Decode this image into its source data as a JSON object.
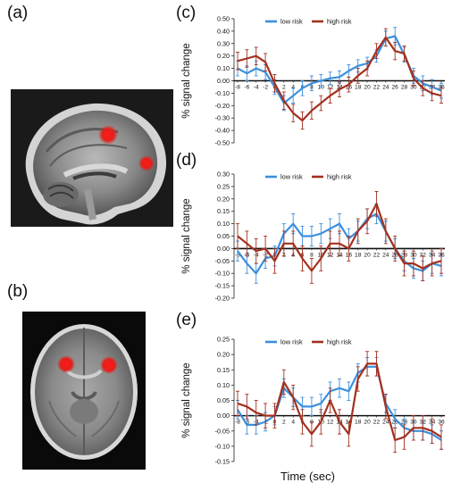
{
  "panels": {
    "a": "(a)",
    "b": "(b)",
    "c": "(c)",
    "d": "(d)",
    "e": "(e)"
  },
  "colors": {
    "low": "#3b8fdc",
    "high": "#a3301f",
    "roi": "#e3201b"
  },
  "shared_xlabel": "Time (sec)",
  "chart_data": [
    {
      "type": "line",
      "ylabel": "% signal change",
      "ylim": [
        -0.5,
        0.5
      ],
      "yticks": [
        0.5,
        0.4,
        0.3,
        0.2,
        0.1,
        0.0,
        -0.1,
        -0.2,
        -0.3,
        -0.4,
        -0.5
      ],
      "ytick_labels": [
        "0.50",
        "0.40",
        "0.30",
        "0.20",
        "0.10",
        "0.00",
        "-0.10",
        "-0.20",
        "-0.30",
        "-0.40",
        "-0.50"
      ],
      "x": [
        -8,
        -6,
        -4,
        -2,
        0,
        2,
        4,
        6,
        8,
        10,
        12,
        14,
        16,
        18,
        20,
        22,
        24,
        26,
        28,
        30,
        32,
        34,
        36
      ],
      "xtick_labels": [
        "-8",
        "-6",
        "-4",
        "-2",
        "0",
        "2",
        "4",
        "6",
        "8",
        "10",
        "12",
        "14",
        "16",
        "18",
        "20",
        "22",
        "24",
        "26",
        "28",
        "30",
        "32",
        "34",
        "36"
      ],
      "legend": {
        "position": "top",
        "entries": [
          "low risk",
          "high risk"
        ]
      },
      "series": [
        {
          "name": "low risk",
          "values": [
            0.1,
            0.06,
            0.1,
            0.07,
            -0.05,
            -0.18,
            -0.12,
            -0.06,
            -0.02,
            0.0,
            0.02,
            0.03,
            0.08,
            0.12,
            0.14,
            0.2,
            0.34,
            0.36,
            0.21,
            0.04,
            -0.02,
            -0.05,
            -0.08
          ],
          "errors": [
            0.06,
            0.06,
            0.06,
            0.06,
            0.06,
            0.06,
            0.06,
            0.06,
            0.06,
            0.05,
            0.05,
            0.05,
            0.05,
            0.05,
            0.05,
            0.05,
            0.06,
            0.07,
            0.06,
            0.06,
            0.06,
            0.06,
            0.06
          ]
        },
        {
          "name": "high risk",
          "values": [
            0.16,
            0.18,
            0.2,
            0.15,
            -0.02,
            -0.16,
            -0.26,
            -0.32,
            -0.24,
            -0.18,
            -0.12,
            -0.07,
            -0.03,
            0.04,
            0.1,
            0.24,
            0.35,
            0.24,
            0.22,
            0.02,
            -0.06,
            -0.1,
            -0.12
          ],
          "errors": [
            0.07,
            0.07,
            0.07,
            0.07,
            0.07,
            0.07,
            0.07,
            0.07,
            0.07,
            0.06,
            0.06,
            0.06,
            0.06,
            0.06,
            0.06,
            0.06,
            0.07,
            0.07,
            0.06,
            0.06,
            0.06,
            0.06,
            0.06
          ]
        }
      ]
    },
    {
      "type": "line",
      "ylabel": "% signal change",
      "ylim": [
        -0.2,
        0.3
      ],
      "yticks": [
        0.3,
        0.25,
        0.2,
        0.15,
        0.1,
        0.05,
        0.0,
        -0.05,
        -0.1,
        -0.15,
        -0.2
      ],
      "ytick_labels": [
        "0.30",
        "0.25",
        "0.20",
        "0.15",
        "0.10",
        "0.05",
        "0.00",
        "-0.05",
        "-0.10",
        "-0.15",
        "-0.20"
      ],
      "x": [
        -8,
        -6,
        -4,
        -2,
        0,
        2,
        4,
        6,
        8,
        10,
        12,
        14,
        16,
        18,
        20,
        22,
        24,
        26,
        28,
        30,
        32,
        34,
        36
      ],
      "xtick_labels": [
        "-8",
        "-6",
        "-4",
        "-2",
        "0",
        "2",
        "4",
        "6",
        "8",
        "10",
        "12",
        "14",
        "16",
        "18",
        "20",
        "22",
        "24",
        "26",
        "28",
        "30",
        "32",
        "34",
        "36"
      ],
      "legend": {
        "position": "top",
        "entries": [
          "low risk",
          "high risk"
        ]
      },
      "series": [
        {
          "name": "low risk",
          "values": [
            -0.01,
            -0.06,
            -0.1,
            -0.04,
            -0.03,
            0.06,
            0.1,
            0.05,
            0.05,
            0.06,
            0.08,
            0.1,
            0.04,
            0.07,
            0.12,
            0.14,
            0.07,
            0.0,
            -0.05,
            -0.08,
            -0.09,
            -0.06,
            -0.07
          ],
          "errors": [
            0.04,
            0.04,
            0.04,
            0.04,
            0.04,
            0.04,
            0.04,
            0.04,
            0.04,
            0.04,
            0.04,
            0.04,
            0.04,
            0.04,
            0.04,
            0.04,
            0.04,
            0.04,
            0.04,
            0.04,
            0.04,
            0.04,
            0.04
          ]
        },
        {
          "name": "high risk",
          "values": [
            0.05,
            0.02,
            -0.01,
            0.0,
            -0.05,
            0.02,
            0.02,
            -0.04,
            -0.09,
            -0.04,
            0.02,
            0.02,
            0.0,
            0.07,
            0.11,
            0.18,
            0.07,
            0.0,
            -0.06,
            -0.06,
            -0.08,
            -0.06,
            -0.05
          ],
          "errors": [
            0.05,
            0.05,
            0.05,
            0.05,
            0.05,
            0.05,
            0.05,
            0.05,
            0.05,
            0.05,
            0.05,
            0.05,
            0.05,
            0.05,
            0.05,
            0.05,
            0.05,
            0.05,
            0.05,
            0.05,
            0.05,
            0.05,
            0.05
          ]
        }
      ]
    },
    {
      "type": "line",
      "ylabel": "% signal change",
      "ylim": [
        -0.15,
        0.25
      ],
      "yticks": [
        0.25,
        0.2,
        0.15,
        0.1,
        0.05,
        0.0,
        -0.05,
        -0.1,
        -0.15
      ],
      "ytick_labels": [
        "0.25",
        "0.20",
        "0.15",
        "0.10",
        "0.05",
        "0.00",
        "-0.05",
        "-0.10",
        "-0.15"
      ],
      "x": [
        -8,
        -6,
        -4,
        -2,
        0,
        2,
        4,
        6,
        8,
        10,
        12,
        14,
        16,
        18,
        20,
        22,
        24,
        26,
        28,
        30,
        32,
        34,
        36
      ],
      "xtick_labels": [
        "-8",
        "-6",
        "-4",
        "-2",
        "0",
        "2",
        "4",
        "6",
        "8",
        "10",
        "12",
        "14",
        "16",
        "18",
        "20",
        "22",
        "24",
        "26",
        "28",
        "30",
        "32",
        "34",
        "36"
      ],
      "legend": {
        "position": "top",
        "entries": [
          "low risk",
          "high risk"
        ]
      },
      "series": [
        {
          "name": "low risk",
          "values": [
            0.02,
            -0.03,
            -0.03,
            -0.02,
            0.0,
            0.09,
            0.06,
            0.03,
            0.03,
            0.04,
            0.08,
            0.09,
            0.08,
            0.14,
            0.16,
            0.16,
            0.04,
            -0.01,
            -0.04,
            -0.05,
            -0.05,
            -0.06,
            -0.08
          ],
          "errors": [
            0.03,
            0.03,
            0.03,
            0.03,
            0.03,
            0.03,
            0.03,
            0.03,
            0.03,
            0.03,
            0.03,
            0.03,
            0.03,
            0.03,
            0.03,
            0.03,
            0.03,
            0.03,
            0.03,
            0.03,
            0.03,
            0.03,
            0.03
          ]
        },
        {
          "name": "high risk",
          "values": [
            0.04,
            0.03,
            0.01,
            0.0,
            0.0,
            0.11,
            0.06,
            -0.02,
            -0.06,
            -0.02,
            0.05,
            -0.02,
            -0.06,
            0.12,
            0.17,
            0.17,
            0.03,
            -0.08,
            -0.07,
            -0.04,
            -0.04,
            -0.05,
            -0.07
          ],
          "errors": [
            0.04,
            0.04,
            0.04,
            0.04,
            0.04,
            0.04,
            0.04,
            0.04,
            0.04,
            0.04,
            0.04,
            0.04,
            0.04,
            0.04,
            0.04,
            0.04,
            0.04,
            0.04,
            0.04,
            0.04,
            0.04,
            0.04,
            0.04
          ]
        }
      ]
    }
  ]
}
